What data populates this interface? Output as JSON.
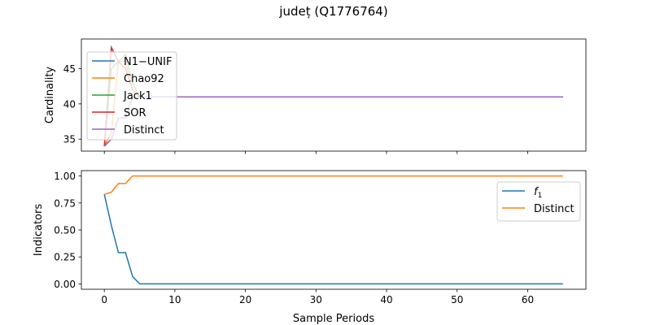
{
  "figure": {
    "title": "județ (Q1776764)",
    "xlabel": "Sample Periods"
  },
  "chart_data": [
    {
      "type": "line",
      "ylabel": "Cardinality",
      "xlim": [
        -3.25,
        68.25
      ],
      "ylim": [
        33.3,
        49.2
      ],
      "xticks": [
        0,
        10,
        20,
        30,
        40,
        50,
        60
      ],
      "xtick_labels_visible": false,
      "yticks": [
        35,
        40,
        45
      ],
      "ytick_labels": [
        "35",
        "40",
        "45"
      ],
      "legend": "upper-left",
      "grid": false,
      "series": [
        {
          "name": "N1−UNIF",
          "color": "#1f77b4",
          "x": [
            0,
            1,
            2,
            3,
            4,
            5,
            6,
            7,
            8,
            9,
            10,
            20,
            30,
            40,
            50,
            60,
            65
          ],
          "y": [
            34,
            35,
            38,
            38,
            41,
            41,
            41,
            41,
            41,
            41,
            41,
            41,
            41,
            41,
            41,
            41,
            41
          ]
        },
        {
          "name": "Chao92",
          "color": "#ff7f0e",
          "x": [
            0,
            1,
            2,
            3,
            4,
            5,
            6,
            7,
            8,
            9,
            10,
            20,
            30,
            40,
            50,
            60,
            65
          ],
          "y": [
            34,
            36,
            46,
            46,
            42,
            41,
            41,
            41,
            41,
            41,
            41,
            41,
            41,
            41,
            41,
            41,
            41
          ]
        },
        {
          "name": "Jack1",
          "color": "#2ca02c",
          "x": [
            0,
            1,
            2,
            3,
            4,
            5,
            6,
            7,
            8,
            9,
            10,
            20,
            30,
            40,
            50,
            60,
            65
          ],
          "y": [
            34,
            45,
            46,
            47,
            43,
            41,
            41,
            41,
            41,
            41,
            41,
            41,
            41,
            41,
            41,
            41,
            41
          ]
        },
        {
          "name": "SOR",
          "color": "#d62728",
          "x": [
            0,
            1,
            2,
            3,
            4,
            5,
            6,
            7,
            8,
            9,
            10,
            20,
            30,
            40,
            50,
            60,
            65
          ],
          "y": [
            34,
            48,
            46,
            45,
            42,
            41,
            41,
            41,
            41,
            41,
            41,
            41,
            41,
            41,
            41,
            41,
            41
          ]
        },
        {
          "name": "Distinct",
          "color": "#9467bd",
          "x": [
            0,
            1,
            2,
            3,
            4,
            5,
            6,
            7,
            8,
            9,
            10,
            20,
            30,
            40,
            50,
            60,
            65
          ],
          "y": [
            34,
            35,
            38,
            38,
            41,
            41,
            41,
            41,
            41,
            41,
            41,
            41,
            41,
            41,
            41,
            41,
            41
          ]
        }
      ]
    },
    {
      "type": "line",
      "ylabel": "Indicators",
      "xlim": [
        -3.25,
        68.25
      ],
      "ylim": [
        -0.05,
        1.05
      ],
      "xticks": [
        0,
        10,
        20,
        30,
        40,
        50,
        60
      ],
      "xtick_labels": [
        "0",
        "10",
        "20",
        "30",
        "40",
        "50",
        "60"
      ],
      "yticks": [
        0,
        0.25,
        0.5,
        0.75,
        1.0
      ],
      "ytick_labels": [
        "0.00",
        "0.25",
        "0.50",
        "0.75",
        "1.00"
      ],
      "legend": "upper-right",
      "grid": false,
      "series": [
        {
          "name": "f",
          "name_subscript": "1",
          "color": "#1f77b4",
          "x": [
            0,
            1,
            2,
            3,
            4,
            5,
            6,
            10,
            20,
            30,
            40,
            50,
            60,
            65
          ],
          "y": [
            0.83,
            0.54,
            0.29,
            0.29,
            0.07,
            0,
            0,
            0,
            0,
            0,
            0,
            0,
            0,
            0
          ]
        },
        {
          "name": "Distinct",
          "color": "#ff7f0e",
          "x": [
            0,
            1,
            2,
            3,
            4,
            5,
            6,
            10,
            20,
            30,
            40,
            50,
            60,
            65
          ],
          "y": [
            0.83,
            0.85,
            0.93,
            0.93,
            1.0,
            1.0,
            1.0,
            1.0,
            1.0,
            1.0,
            1.0,
            1.0,
            1.0,
            1.0
          ]
        }
      ]
    }
  ]
}
